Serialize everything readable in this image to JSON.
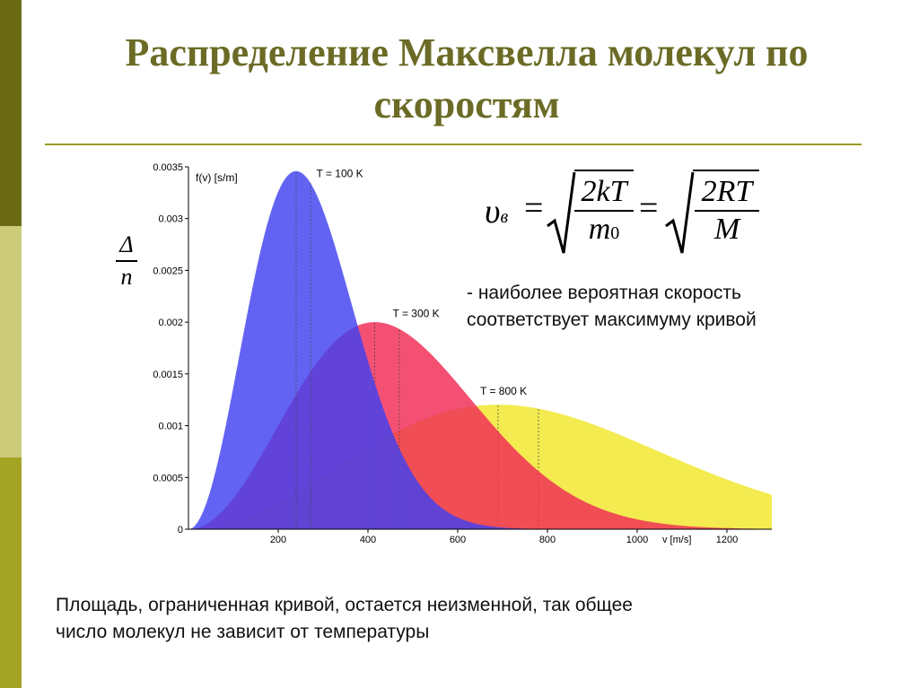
{
  "slide": {
    "title": "Распределение Максвелла молекул по скоростям",
    "note_lines": [
      "- наиболее вероятная скорость",
      "соответствует максимуму кривой"
    ],
    "footer_lines": [
      "Площадь, ограниченная кривой, остается неизменной, так общее",
      "число молекул не зависит от температуры"
    ],
    "stray_text": {
      "top": "Δ",
      "bottom": "n"
    }
  },
  "formula": {
    "lhs": "υ",
    "lhs_subscript": "в",
    "eq": "=",
    "frac1_num": "2kT",
    "frac1_den_main": "m",
    "frac1_den_sub": "0",
    "frac2_num": "2RT",
    "frac2_den": "M"
  },
  "colors": {
    "accent": "#6b6b26",
    "rule": "#9c9c2a",
    "t100": "#4141f0",
    "t300": "#f02a55",
    "t800": "#f0e628"
  },
  "chart_data": {
    "type": "area",
    "title": "",
    "xlabel": "v [m/s]",
    "ylabel": "f(v) [s/m]",
    "xlim": [
      0,
      1300
    ],
    "ylim": [
      0,
      0.0035
    ],
    "xticks": [
      200,
      400,
      600,
      800,
      1000,
      1200
    ],
    "xtick_labels": [
      "200",
      "400",
      "600",
      "800",
      "1000",
      "1200"
    ],
    "yticks": [
      0,
      0.0005,
      0.001,
      0.0015,
      0.002,
      0.0025,
      0.003,
      0.0035
    ],
    "ytick_labels": [
      "0",
      "0.0005",
      "0.001",
      "0.0015",
      "0.002",
      "0.0025",
      "0.003",
      "0.0035"
    ],
    "grid": false,
    "series": [
      {
        "name": "T = 100 K",
        "vp": 240,
        "marker_v": [
          240,
          272
        ],
        "color": "#4141f0"
      },
      {
        "name": "T = 300 K",
        "vp": 415,
        "marker_v": [
          415,
          470
        ],
        "color": "#f02a55"
      },
      {
        "name": "T = 800 K",
        "vp": 690,
        "marker_v": [
          690,
          780
        ],
        "color": "#f0e628"
      }
    ],
    "annotations": [
      {
        "text": "T = 100 K",
        "v": 285,
        "f": 0.0034
      },
      {
        "text": "T = 300 K",
        "v": 455,
        "f": 0.00205
      },
      {
        "text": "T = 800 K",
        "v": 650,
        "f": 0.0013
      }
    ]
  }
}
